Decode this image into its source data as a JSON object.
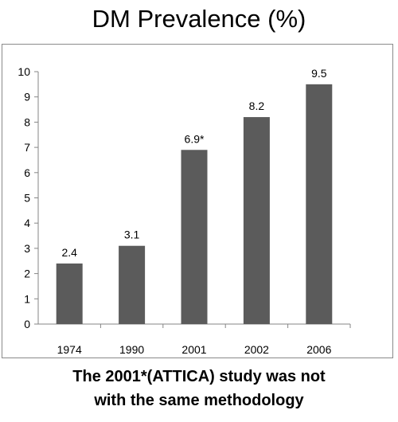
{
  "chart_data": {
    "type": "bar",
    "title": "DM Prevalence (%)",
    "categories": [
      "1974",
      "1990",
      "2001",
      "2002",
      "2006"
    ],
    "values": [
      2.4,
      3.1,
      6.9,
      8.2,
      9.5
    ],
    "data_labels": [
      "2.4",
      "3.1",
      "6.9*",
      "8.2",
      "9.5"
    ],
    "ylim": [
      0,
      10
    ],
    "yticks": [
      "0",
      "1",
      "2",
      "3",
      "4",
      "5",
      "6",
      "7",
      "8",
      "9",
      "10"
    ],
    "xlabel": "",
    "ylabel": "",
    "grid": false,
    "bar_color": "#5b5b5b"
  },
  "caption": {
    "line1": "The 2001*(ATTICA) study was not",
    "line2": "with the same methodology"
  }
}
